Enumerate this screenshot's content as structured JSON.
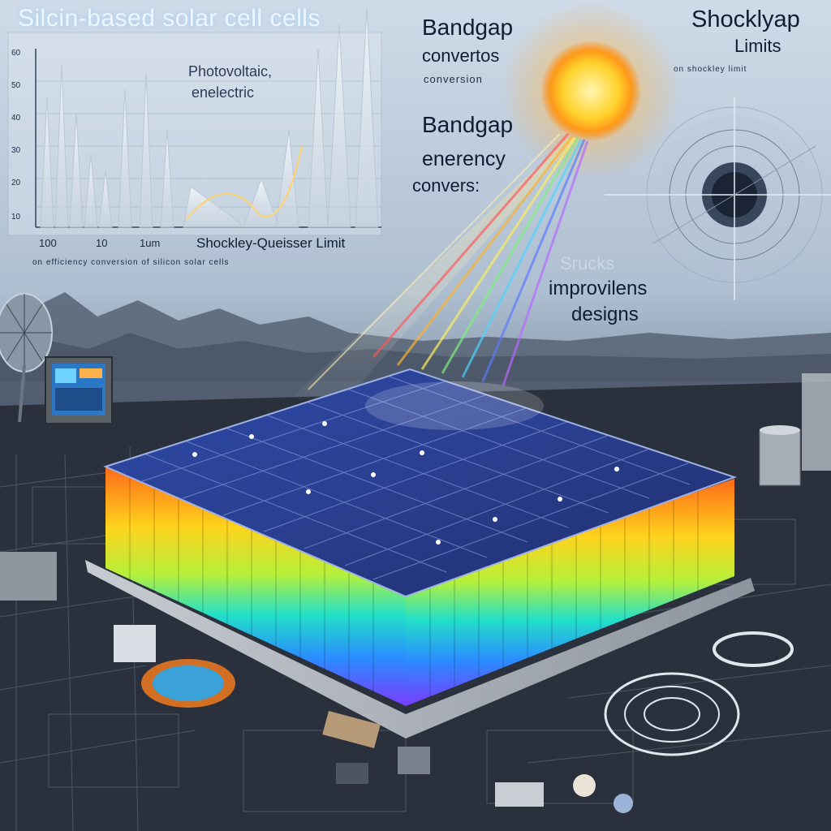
{
  "labels": {
    "title_top": "Silcin-based solar cell cells",
    "bandgap_1": "Bandgap",
    "convertos": "convertos",
    "conversion_small": "conversion",
    "shockley_1": "Shocklyap",
    "shockley_2": "Limits",
    "shockley_small": "on shockley limit",
    "bandgap_2": "Bandgap",
    "enerency": "enerency",
    "convers": "convers:",
    "photovoltaic": "Photovoltaic,",
    "electric": "enelectric",
    "shockley_queisser": "Shockley-Queisser Limit",
    "x_tick_1": "100",
    "x_tick_2": "10",
    "x_tick_3": "1um",
    "axis_small": "on efficiency conversion of silicon solar cells",
    "srucks": "Srucks",
    "improvements": "improvilens",
    "designs": "designs",
    "y_ticks": [
      "60",
      "50",
      "40",
      "30",
      "20",
      "10"
    ]
  },
  "colors": {
    "sky_top": "#d9e4ef",
    "sky_bottom": "#8fa3b8",
    "panel_blue": "#263c8a",
    "sun": "#ffd23a",
    "floor": "#2a313c"
  }
}
